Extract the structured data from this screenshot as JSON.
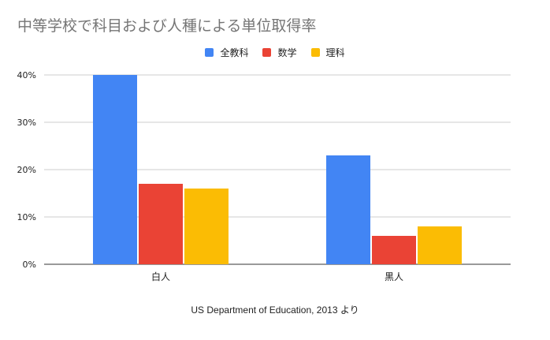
{
  "chart_data": {
    "type": "bar",
    "title": "中等学校で科目および人種による単位取得率",
    "categories": [
      "白人",
      "黒人"
    ],
    "series": [
      {
        "name": "全教科",
        "color": "#4285f4",
        "values": [
          40,
          23
        ]
      },
      {
        "name": "数学",
        "color": "#ea4335",
        "values": [
          17,
          6
        ]
      },
      {
        "name": "理科",
        "color": "#fbbc04",
        "values": [
          16,
          8
        ]
      }
    ],
    "ylim": [
      0,
      40
    ],
    "yticks": [
      "0%",
      "10%",
      "20%",
      "30%",
      "40%"
    ],
    "unit": "%",
    "grid": true,
    "legend_position": "top-center",
    "source": "US Department of Education, 2013 より"
  }
}
